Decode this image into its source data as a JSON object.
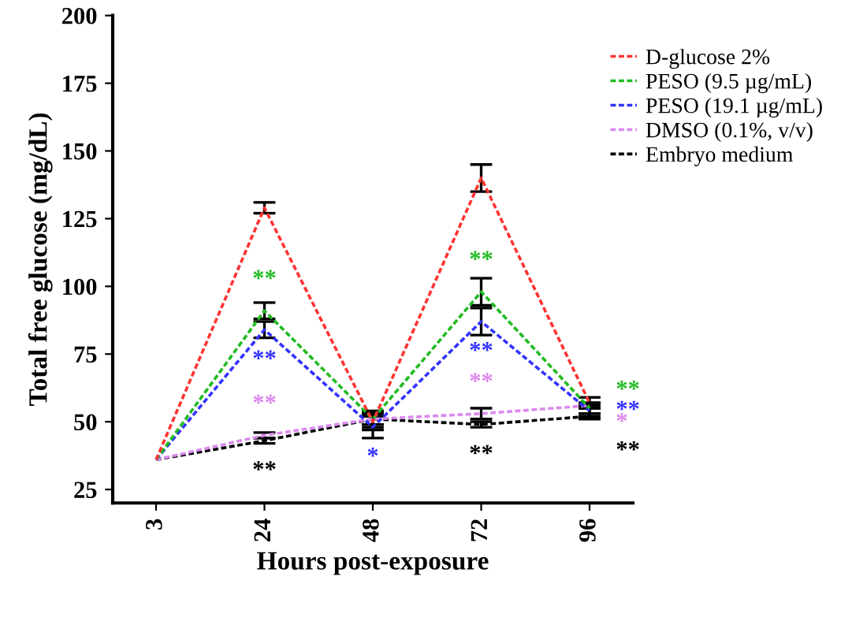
{
  "chart_data": {
    "type": "line",
    "xlabel": "Hours post-exposure",
    "ylabel": "Total free glucose (mg/dL)",
    "categories": [
      "3",
      "24",
      "48",
      "72",
      "96"
    ],
    "series": [
      {
        "name": "D-glucose 2%",
        "color": "#ff3333",
        "values": [
          36,
          129,
          50,
          140,
          57
        ],
        "errors": [
          null,
          2,
          3,
          5,
          2
        ]
      },
      {
        "name": "PESO (9.5 µg/mL)",
        "color": "#22bb22",
        "values": [
          36,
          91,
          51,
          98,
          55
        ],
        "errors": [
          null,
          3,
          3,
          5,
          2
        ],
        "value_labels": [
          null,
          "**",
          null,
          "**",
          "**"
        ]
      },
      {
        "name": "PESO (19.1 µg/mL)",
        "color": "#3333ff",
        "values": [
          36,
          84,
          48,
          87,
          54
        ],
        "errors": [
          null,
          3,
          4,
          5,
          2
        ],
        "value_labels": [
          null,
          "**",
          "*",
          "**",
          "**"
        ]
      },
      {
        "name": "DMSO (0.1%, v/v)",
        "color": "#dd88ee",
        "values": [
          36,
          45,
          51,
          53,
          56
        ],
        "errors": [
          null,
          1,
          2,
          2,
          1
        ],
        "value_labels": [
          null,
          "**",
          null,
          "**",
          "*"
        ]
      },
      {
        "name": "Embryo medium",
        "color": "#000000",
        "values": [
          36,
          43,
          51,
          49,
          52
        ],
        "errors": [
          null,
          1,
          2,
          1,
          1
        ],
        "value_labels": [
          null,
          "**",
          null,
          "**",
          "**"
        ]
      }
    ],
    "ylim": [
      20,
      200
    ],
    "yticks": [
      25,
      50,
      75,
      100,
      125,
      150,
      175,
      200
    ],
    "line_style": "dashed",
    "marker": "none",
    "legend": "top right",
    "grid": false
  }
}
